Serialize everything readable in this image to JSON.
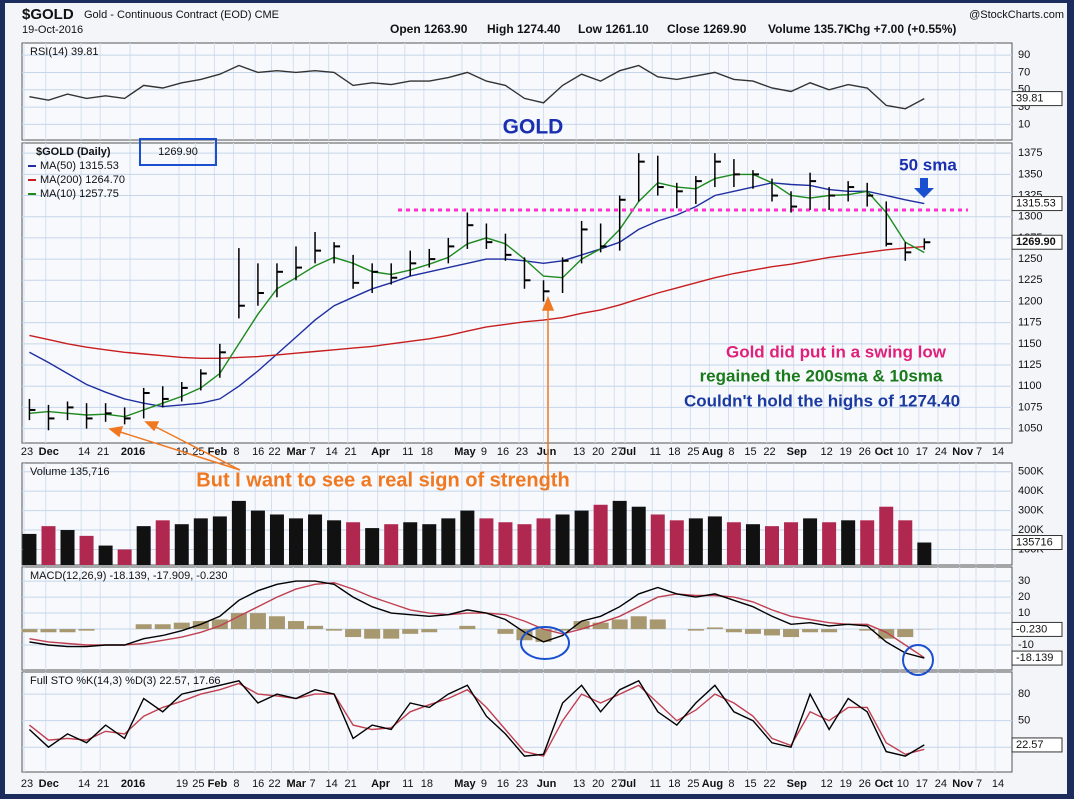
{
  "header": {
    "symbol": "$GOLD",
    "name": "Gold - Continuous Contract (EOD) CME",
    "date": "19-Oct-2016",
    "stats": [
      "Open 1263.90",
      "High 1274.40",
      "Low 1261.10",
      "Close 1269.90",
      "Volume 135.7K",
      "Chg +7.00 (+0.55%)"
    ],
    "source": "@StockCharts.com"
  },
  "annotations": [
    "GOLD",
    "50 sma",
    "Gold did put in a swing low",
    "regained the 200sma & 10sma",
    "Couldn't hold the highs of 1274.40",
    "But I want to see a real sign of strength"
  ],
  "chart_data": [
    {
      "type": "line",
      "title": "RSI(14) 39.81",
      "ylim": [
        -8,
        104
      ],
      "yticks": [
        10,
        30,
        50,
        70,
        90
      ],
      "grid": true,
      "tags": [
        39.81
      ],
      "series": [
        {
          "color": "#333333",
          "values": [
            42,
            38,
            45,
            40,
            43,
            40,
            55,
            52,
            58,
            62,
            68,
            78,
            70,
            72,
            70,
            72,
            70,
            55,
            58,
            56,
            60,
            60,
            64,
            70,
            60,
            55,
            40,
            35,
            55,
            68,
            60,
            72,
            78,
            65,
            62,
            66,
            70,
            62,
            60,
            52,
            48,
            58,
            50,
            56,
            52,
            32,
            28,
            39.81
          ]
        }
      ]
    },
    {
      "type": "ohlc",
      "title": "$GOLD (Daily)",
      "ylim": [
        1033,
        1387
      ],
      "yticks": [
        1050,
        1075,
        1100,
        1125,
        1150,
        1175,
        1200,
        1225,
        1250,
        1275,
        1300,
        1325,
        1350,
        1375
      ],
      "grid": true,
      "tags": [
        1315.53,
        {
          "value": 1269.9,
          "label": "1269.90"
        }
      ],
      "hline": 1308,
      "hline_color": "#ff33cc",
      "x": [
        "Nov 25",
        "Dec 2",
        "Dec 9",
        "Dec 16",
        "Dec 23",
        "Dec 30",
        "Jan 6",
        "Jan 13",
        "Jan 20",
        "Jan 27",
        "Feb 3",
        "Feb 10",
        "Feb 17",
        "Feb 24",
        "Mar 2",
        "Mar 9",
        "Mar 16",
        "Mar 23",
        "Mar 30",
        "Apr 6",
        "Apr 13",
        "Apr 20",
        "Apr 27",
        "May 4",
        "May 11",
        "May 18",
        "May 25",
        "Jun 1",
        "Jun 8",
        "Jun 15",
        "Jun 22",
        "Jun 29",
        "Jul 6",
        "Jul 13",
        "Jul 20",
        "Jul 27",
        "Aug 3",
        "Aug 10",
        "Aug 17",
        "Aug 24",
        "Aug 31",
        "Sep 7",
        "Sep 14",
        "Sep 21",
        "Sep 28",
        "Oct 5",
        "Oct 12",
        "Oct 19"
      ],
      "xticks": [
        {
          "value": "Nov 23",
          "label": "23"
        },
        {
          "value": "Dec 1",
          "label": "Dec"
        },
        {
          "value": "Dec 14",
          "label": "14"
        },
        {
          "value": "Dec 21",
          "label": "21"
        },
        {
          "value": "Jan 1",
          "label": "2016"
        },
        {
          "value": "Jan 19",
          "label": "19"
        },
        {
          "value": "Jan 25",
          "label": "25"
        },
        {
          "value": "Feb 1",
          "label": "Feb"
        },
        {
          "value": "Feb 8",
          "label": "8"
        },
        {
          "value": "Feb 16",
          "label": "16"
        },
        {
          "value": "Feb 22",
          "label": "22"
        },
        {
          "value": "Mar 1",
          "label": "Mar"
        },
        {
          "value": "Mar 7",
          "label": "7"
        },
        {
          "value": "Mar 14",
          "label": "14"
        },
        {
          "value": "Mar 21",
          "label": "21"
        },
        {
          "value": "Apr 1",
          "label": "Apr"
        },
        {
          "value": "Apr 11",
          "label": "11"
        },
        {
          "value": "Apr 18",
          "label": "18"
        },
        {
          "value": "May 2",
          "label": "May"
        },
        {
          "value": "May 9",
          "label": "9"
        },
        {
          "value": "May 16",
          "label": "16"
        },
        {
          "value": "May 23",
          "label": "23"
        },
        {
          "value": "Jun 1",
          "label": "Jun"
        },
        {
          "value": "Jun 13",
          "label": "13"
        },
        {
          "value": "Jun 20",
          "label": "20"
        },
        {
          "value": "Jun 27",
          "label": "27"
        },
        {
          "value": "Jul 1",
          "label": "Jul"
        },
        {
          "value": "Jul 11",
          "label": "11"
        },
        {
          "value": "Jul 18",
          "label": "18"
        },
        {
          "value": "Jul 25",
          "label": "25"
        },
        {
          "value": "Aug 1",
          "label": "Aug"
        },
        {
          "value": "Aug 8",
          "label": "8"
        },
        {
          "value": "Aug 15",
          "label": "15"
        },
        {
          "value": "Aug 22",
          "label": "22"
        },
        {
          "value": "Sep 1",
          "label": "Sep"
        },
        {
          "value": "Sep 12",
          "label": "12"
        },
        {
          "value": "Sep 19",
          "label": "19"
        },
        {
          "value": "Sep 26",
          "label": "26"
        },
        {
          "value": "Oct 3",
          "label": "Oct"
        },
        {
          "value": "Oct 10",
          "label": "10"
        },
        {
          "value": "Oct 17",
          "label": "17"
        },
        {
          "value": "Oct 24",
          "label": "24"
        },
        {
          "value": "Nov 1",
          "label": "Nov"
        },
        {
          "value": "Nov 7",
          "label": "7"
        },
        {
          "value": "Nov 14",
          "label": "14"
        }
      ],
      "series": [
        {
          "name": "$GOLD (Daily)",
          "color": "#000000",
          "close": [
            1072,
            1062,
            1075,
            1062,
            1068,
            1062,
            1092,
            1085,
            1098,
            1115,
            1140,
            1195,
            1210,
            1235,
            1240,
            1260,
            1265,
            1222,
            1235,
            1228,
            1245,
            1250,
            1265,
            1290,
            1270,
            1255,
            1225,
            1212,
            1248,
            1285,
            1265,
            1320,
            1365,
            1335,
            1330,
            1342,
            1365,
            1350,
            1350,
            1325,
            1312,
            1342,
            1325,
            1335,
            1325,
            1268,
            1258,
            1269.9
          ],
          "high": [
            1085,
            1078,
            1082,
            1080,
            1080,
            1075,
            1098,
            1100,
            1105,
            1120,
            1150,
            1263,
            1245,
            1245,
            1265,
            1282,
            1270,
            1255,
            1245,
            1245,
            1260,
            1262,
            1275,
            1305,
            1292,
            1280,
            1252,
            1225,
            1252,
            1295,
            1292,
            1325,
            1375,
            1372,
            1340,
            1348,
            1375,
            1368,
            1355,
            1345,
            1330,
            1352,
            1335,
            1342,
            1340,
            1318,
            1270,
            1274.4
          ],
          "low": [
            1060,
            1048,
            1060,
            1050,
            1058,
            1055,
            1062,
            1075,
            1082,
            1095,
            1110,
            1180,
            1195,
            1205,
            1225,
            1245,
            1245,
            1215,
            1210,
            1220,
            1230,
            1240,
            1245,
            1262,
            1262,
            1248,
            1215,
            1200,
            1210,
            1245,
            1258,
            1260,
            1318,
            1325,
            1310,
            1315,
            1335,
            1335,
            1333,
            1318,
            1305,
            1308,
            1308,
            1318,
            1312,
            1265,
            1248,
            1261.1
          ]
        },
        {
          "name": "MA(50) 1315.53",
          "color": "#1f2fa0",
          "values": [
            1140,
            1128,
            1115,
            1102,
            1093,
            1085,
            1080,
            1076,
            1078,
            1080,
            1085,
            1100,
            1118,
            1138,
            1158,
            1178,
            1195,
            1205,
            1215,
            1222,
            1230,
            1235,
            1240,
            1245,
            1250,
            1250,
            1248,
            1245,
            1248,
            1255,
            1262,
            1270,
            1285,
            1295,
            1302,
            1312,
            1325,
            1330,
            1335,
            1340,
            1338,
            1337,
            1332,
            1330,
            1330,
            1325,
            1320,
            1315.53
          ]
        },
        {
          "name": "MA(200) 1264.70",
          "color": "#c81e1e",
          "values": [
            1160,
            1155,
            1150,
            1146,
            1143,
            1140,
            1138,
            1136,
            1134,
            1133,
            1133,
            1134,
            1135,
            1137,
            1139,
            1141,
            1143,
            1145,
            1147,
            1150,
            1153,
            1156,
            1160,
            1165,
            1170,
            1173,
            1176,
            1178,
            1181,
            1186,
            1190,
            1196,
            1203,
            1210,
            1216,
            1222,
            1228,
            1233,
            1237,
            1241,
            1244,
            1248,
            1252,
            1255,
            1258,
            1261,
            1263,
            1264.7
          ]
        },
        {
          "name": "MA(10) 1257.75",
          "color": "#1e8a1e",
          "values": [
            1068,
            1070,
            1068,
            1066,
            1067,
            1064,
            1072,
            1080,
            1088,
            1098,
            1115,
            1150,
            1185,
            1215,
            1228,
            1242,
            1252,
            1245,
            1235,
            1232,
            1237,
            1244,
            1252,
            1268,
            1275,
            1268,
            1250,
            1230,
            1228,
            1250,
            1262,
            1285,
            1318,
            1340,
            1335,
            1333,
            1345,
            1350,
            1350,
            1340,
            1325,
            1322,
            1325,
            1326,
            1330,
            1305,
            1270,
            1257.75
          ]
        }
      ]
    },
    {
      "type": "bar",
      "title": "Volume 135,716",
      "ylim": [
        20000,
        545000
      ],
      "yticks": [
        {
          "value": 100000,
          "label": "100K"
        },
        {
          "value": 200000,
          "label": "200K"
        },
        {
          "value": 300000,
          "label": "300K"
        },
        {
          "value": 400000,
          "label": "400K"
        },
        {
          "value": 500000,
          "label": "500K"
        }
      ],
      "grid": true,
      "tags": [
        135716
      ],
      "up_color": "#111111",
      "down_color": "#b02850",
      "series": [
        {
          "values": [
            180000,
            220000,
            200000,
            170000,
            120000,
            100000,
            220000,
            250000,
            230000,
            260000,
            270000,
            350000,
            300000,
            280000,
            260000,
            280000,
            250000,
            240000,
            210000,
            230000,
            240000,
            230000,
            260000,
            300000,
            260000,
            240000,
            230000,
            260000,
            280000,
            300000,
            330000,
            350000,
            320000,
            280000,
            250000,
            260000,
            270000,
            240000,
            230000,
            220000,
            240000,
            260000,
            240000,
            250000,
            250000,
            320000,
            250000,
            135716
          ]
        }
      ]
    },
    {
      "type": "line",
      "title": "MACD(12,26,9) -18.139, -17.909, -0.230",
      "ylim": [
        -25.6,
        38.8
      ],
      "yticks": [
        -10,
        0,
        10,
        20,
        30
      ],
      "grid": true,
      "tags": [
        {
          "value": -0.23,
          "label": "-0.230"
        },
        -18.139
      ],
      "series": [
        {
          "color": "#a89870",
          "style": "bar",
          "values": [
            -2,
            -2,
            -2,
            -1,
            0,
            0,
            3,
            3,
            4,
            5,
            6,
            10,
            10,
            8,
            5,
            2,
            -1,
            -5,
            -6,
            -6,
            -3,
            -2,
            0,
            2,
            0,
            -3,
            -7,
            -8,
            -1,
            5,
            4,
            6,
            8,
            6,
            0,
            -1,
            1,
            -2,
            -3,
            -4,
            -5,
            -2,
            -2,
            0,
            -1,
            -6,
            -5,
            -0.23
          ]
        },
        {
          "color": "#c04050",
          "values": [
            -6,
            -8,
            -9,
            -10,
            -10,
            -10,
            -9,
            -7,
            -5,
            -2,
            2,
            8,
            14,
            20,
            25,
            28,
            29,
            25,
            20,
            16,
            12,
            10,
            9,
            10,
            10,
            9,
            5,
            0,
            -3,
            0,
            4,
            8,
            14,
            20,
            22,
            21,
            21,
            20,
            17,
            12,
            8,
            6,
            4,
            3,
            3,
            -2,
            -10,
            -17.909
          ]
        },
        {
          "color": "#000000",
          "values": [
            -8,
            -10,
            -11,
            -11,
            -10,
            -10,
            -6,
            -4,
            -1,
            3,
            8,
            18,
            24,
            28,
            30,
            30,
            28,
            20,
            14,
            10,
            9,
            8,
            9,
            12,
            10,
            6,
            -2,
            -8,
            -4,
            5,
            8,
            14,
            22,
            26,
            22,
            20,
            22,
            18,
            14,
            8,
            3,
            4,
            2,
            3,
            2,
            -8,
            -15,
            -18.139
          ]
        }
      ]
    },
    {
      "type": "line",
      "title": "Full STO %K(14,3) %D(3) 22.57, 17.66",
      "ylim": [
        -8,
        105
      ],
      "yticks": [
        20,
        50,
        80
      ],
      "grid": true,
      "tags": [
        22.57
      ],
      "series": [
        {
          "color": "#c04050",
          "values": [
            45,
            28,
            30,
            28,
            38,
            35,
            55,
            65,
            72,
            80,
            85,
            92,
            80,
            78,
            75,
            80,
            80,
            45,
            40,
            42,
            60,
            68,
            75,
            85,
            65,
            40,
            15,
            10,
            50,
            80,
            70,
            80,
            90,
            70,
            50,
            62,
            80,
            70,
            55,
            30,
            22,
            60,
            50,
            65,
            65,
            25,
            12,
            17.66
          ]
        },
        {
          "color": "#000000",
          "values": [
            40,
            20,
            35,
            25,
            45,
            30,
            75,
            60,
            80,
            85,
            90,
            95,
            70,
            80,
            75,
            85,
            80,
            30,
            45,
            40,
            70,
            65,
            80,
            90,
            55,
            35,
            10,
            12,
            70,
            90,
            60,
            85,
            95,
            60,
            45,
            70,
            90,
            60,
            50,
            25,
            20,
            80,
            40,
            75,
            60,
            15,
            10,
            22.57
          ]
        }
      ]
    }
  ]
}
